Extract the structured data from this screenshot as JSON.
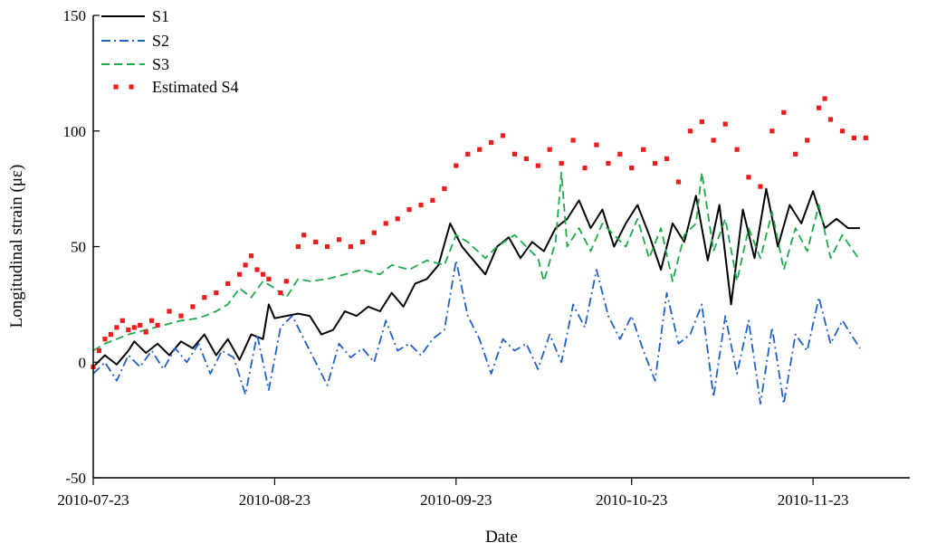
{
  "chart_data": {
    "type": "line",
    "xlabel": "Date",
    "ylabel": "Longitudinal strain (με)",
    "xlim": [
      "2010-07-23",
      "2010-12-11"
    ],
    "ylim": [
      -50,
      150
    ],
    "x_ticks": [
      "2010-07-23",
      "2010-08-23",
      "2010-09-23",
      "2010-10-23",
      "2010-11-23"
    ],
    "y_ticks": [
      -50,
      0,
      50,
      100,
      150
    ],
    "legend_position": "top-left",
    "grid": false,
    "series": [
      {
        "name": "S1",
        "style": "solid",
        "color": "#000000",
        "points": [
          [
            "2010-07-23",
            -2
          ],
          [
            "2010-07-25",
            3
          ],
          [
            "2010-07-27",
            -1
          ],
          [
            "2010-07-29",
            5
          ],
          [
            "2010-07-30",
            9
          ],
          [
            "2010-08-01",
            4
          ],
          [
            "2010-08-03",
            8
          ],
          [
            "2010-08-05",
            3
          ],
          [
            "2010-08-07",
            9
          ],
          [
            "2010-08-09",
            6
          ],
          [
            "2010-08-11",
            12
          ],
          [
            "2010-08-13",
            3
          ],
          [
            "2010-08-15",
            10
          ],
          [
            "2010-08-17",
            1
          ],
          [
            "2010-08-19",
            12
          ],
          [
            "2010-08-21",
            10
          ],
          [
            "2010-08-22",
            25
          ],
          [
            "2010-08-23",
            19
          ],
          [
            "2010-08-25",
            20
          ],
          [
            "2010-08-27",
            21
          ],
          [
            "2010-08-29",
            20
          ],
          [
            "2010-08-31",
            12
          ],
          [
            "2010-09-02",
            14
          ],
          [
            "2010-09-04",
            22
          ],
          [
            "2010-09-06",
            20
          ],
          [
            "2010-09-08",
            24
          ],
          [
            "2010-09-10",
            22
          ],
          [
            "2010-09-12",
            30
          ],
          [
            "2010-09-14",
            24
          ],
          [
            "2010-09-16",
            34
          ],
          [
            "2010-09-18",
            36
          ],
          [
            "2010-09-20",
            42
          ],
          [
            "2010-09-22",
            60
          ],
          [
            "2010-09-24",
            50
          ],
          [
            "2010-09-26",
            44
          ],
          [
            "2010-09-28",
            38
          ],
          [
            "2010-09-30",
            50
          ],
          [
            "2010-10-02",
            54
          ],
          [
            "2010-10-04",
            45
          ],
          [
            "2010-10-06",
            52
          ],
          [
            "2010-10-08",
            48
          ],
          [
            "2010-10-10",
            58
          ],
          [
            "2010-10-12",
            62
          ],
          [
            "2010-10-14",
            70
          ],
          [
            "2010-10-16",
            58
          ],
          [
            "2010-10-18",
            66
          ],
          [
            "2010-10-20",
            50
          ],
          [
            "2010-10-22",
            60
          ],
          [
            "2010-10-24",
            68
          ],
          [
            "2010-10-26",
            55
          ],
          [
            "2010-10-28",
            40
          ],
          [
            "2010-10-30",
            60
          ],
          [
            "2010-11-01",
            52
          ],
          [
            "2010-11-03",
            72
          ],
          [
            "2010-11-05",
            44
          ],
          [
            "2010-11-07",
            68
          ],
          [
            "2010-11-09",
            25
          ],
          [
            "2010-11-11",
            66
          ],
          [
            "2010-11-13",
            45
          ],
          [
            "2010-11-15",
            75
          ],
          [
            "2010-11-17",
            50
          ],
          [
            "2010-11-19",
            68
          ],
          [
            "2010-11-21",
            60
          ],
          [
            "2010-11-23",
            74
          ],
          [
            "2010-11-25",
            58
          ],
          [
            "2010-11-27",
            62
          ],
          [
            "2010-11-29",
            58
          ],
          [
            "2010-12-01",
            58
          ]
        ]
      },
      {
        "name": "S2",
        "style": "dashdot",
        "color": "#1f5fc8",
        "points": [
          [
            "2010-07-23",
            -5
          ],
          [
            "2010-07-25",
            0
          ],
          [
            "2010-07-27",
            -8
          ],
          [
            "2010-07-29",
            3
          ],
          [
            "2010-07-31",
            -2
          ],
          [
            "2010-08-02",
            5
          ],
          [
            "2010-08-04",
            -3
          ],
          [
            "2010-08-06",
            6
          ],
          [
            "2010-08-08",
            0
          ],
          [
            "2010-08-10",
            8
          ],
          [
            "2010-08-12",
            -5
          ],
          [
            "2010-08-14",
            5
          ],
          [
            "2010-08-16",
            2
          ],
          [
            "2010-08-18",
            -14
          ],
          [
            "2010-08-20",
            12
          ],
          [
            "2010-08-22",
            -12
          ],
          [
            "2010-08-24",
            15
          ],
          [
            "2010-08-26",
            20
          ],
          [
            "2010-08-28",
            10
          ],
          [
            "2010-08-30",
            0
          ],
          [
            "2010-09-01",
            -10
          ],
          [
            "2010-09-03",
            8
          ],
          [
            "2010-09-05",
            2
          ],
          [
            "2010-09-07",
            6
          ],
          [
            "2010-09-09",
            0
          ],
          [
            "2010-09-11",
            18
          ],
          [
            "2010-09-13",
            5
          ],
          [
            "2010-09-15",
            8
          ],
          [
            "2010-09-17",
            3
          ],
          [
            "2010-09-19",
            10
          ],
          [
            "2010-09-21",
            14
          ],
          [
            "2010-09-23",
            44
          ],
          [
            "2010-09-25",
            20
          ],
          [
            "2010-09-27",
            10
          ],
          [
            "2010-09-29",
            -5
          ],
          [
            "2010-10-01",
            10
          ],
          [
            "2010-10-03",
            5
          ],
          [
            "2010-10-05",
            8
          ],
          [
            "2010-10-07",
            -3
          ],
          [
            "2010-10-09",
            12
          ],
          [
            "2010-10-11",
            0
          ],
          [
            "2010-10-13",
            25
          ],
          [
            "2010-10-15",
            15
          ],
          [
            "2010-10-17",
            40
          ],
          [
            "2010-10-19",
            20
          ],
          [
            "2010-10-21",
            10
          ],
          [
            "2010-10-23",
            20
          ],
          [
            "2010-10-25",
            5
          ],
          [
            "2010-10-27",
            -8
          ],
          [
            "2010-10-29",
            30
          ],
          [
            "2010-10-31",
            8
          ],
          [
            "2010-11-02",
            12
          ],
          [
            "2010-11-04",
            25
          ],
          [
            "2010-11-06",
            -15
          ],
          [
            "2010-11-08",
            20
          ],
          [
            "2010-11-10",
            -5
          ],
          [
            "2010-11-12",
            18
          ],
          [
            "2010-11-14",
            -18
          ],
          [
            "2010-11-16",
            15
          ],
          [
            "2010-11-18",
            -18
          ],
          [
            "2010-11-20",
            12
          ],
          [
            "2010-11-22",
            5
          ],
          [
            "2010-11-24",
            28
          ],
          [
            "2010-11-26",
            8
          ],
          [
            "2010-11-28",
            18
          ],
          [
            "2010-11-30",
            10
          ],
          [
            "2010-12-01",
            6
          ]
        ]
      },
      {
        "name": "S3",
        "style": "dashed",
        "color": "#1aaa4a",
        "points": [
          [
            "2010-07-23",
            5
          ],
          [
            "2010-07-25",
            8
          ],
          [
            "2010-07-27",
            10
          ],
          [
            "2010-07-29",
            12
          ],
          [
            "2010-08-01",
            14
          ],
          [
            "2010-08-04",
            16
          ],
          [
            "2010-08-07",
            18
          ],
          [
            "2010-08-10",
            19
          ],
          [
            "2010-08-13",
            22
          ],
          [
            "2010-08-15",
            25
          ],
          [
            "2010-08-17",
            32
          ],
          [
            "2010-08-19",
            28
          ],
          [
            "2010-08-21",
            35
          ],
          [
            "2010-08-23",
            32
          ],
          [
            "2010-08-25",
            28
          ],
          [
            "2010-08-27",
            36
          ],
          [
            "2010-08-29",
            35
          ],
          [
            "2010-09-01",
            36
          ],
          [
            "2010-09-04",
            38
          ],
          [
            "2010-09-07",
            40
          ],
          [
            "2010-09-10",
            38
          ],
          [
            "2010-09-12",
            42
          ],
          [
            "2010-09-15",
            40
          ],
          [
            "2010-09-18",
            44
          ],
          [
            "2010-09-21",
            42
          ],
          [
            "2010-09-23",
            55
          ],
          [
            "2010-09-25",
            52
          ],
          [
            "2010-09-28",
            45
          ],
          [
            "2010-09-30",
            50
          ],
          [
            "2010-10-03",
            55
          ],
          [
            "2010-10-05",
            50
          ],
          [
            "2010-10-07",
            45
          ],
          [
            "2010-10-08",
            35
          ],
          [
            "2010-10-10",
            52
          ],
          [
            "2010-10-11",
            82
          ],
          [
            "2010-10-12",
            50
          ],
          [
            "2010-10-14",
            58
          ],
          [
            "2010-10-16",
            48
          ],
          [
            "2010-10-18",
            60
          ],
          [
            "2010-10-20",
            55
          ],
          [
            "2010-10-22",
            50
          ],
          [
            "2010-10-24",
            62
          ],
          [
            "2010-10-26",
            45
          ],
          [
            "2010-10-28",
            58
          ],
          [
            "2010-10-30",
            35
          ],
          [
            "2010-11-01",
            55
          ],
          [
            "2010-11-03",
            60
          ],
          [
            "2010-11-04",
            82
          ],
          [
            "2010-11-06",
            48
          ],
          [
            "2010-11-08",
            62
          ],
          [
            "2010-11-10",
            35
          ],
          [
            "2010-11-12",
            58
          ],
          [
            "2010-11-14",
            45
          ],
          [
            "2010-11-16",
            65
          ],
          [
            "2010-11-18",
            40
          ],
          [
            "2010-11-20",
            58
          ],
          [
            "2010-11-22",
            48
          ],
          [
            "2010-11-24",
            68
          ],
          [
            "2010-11-26",
            45
          ],
          [
            "2010-11-28",
            55
          ],
          [
            "2010-12-01",
            44
          ]
        ]
      },
      {
        "name": "Estimated S4",
        "style": "markers",
        "color": "#ee1c1c",
        "points": [
          [
            "2010-07-23",
            -2
          ],
          [
            "2010-07-24",
            5
          ],
          [
            "2010-07-25",
            10
          ],
          [
            "2010-07-26",
            12
          ],
          [
            "2010-07-27",
            15
          ],
          [
            "2010-07-28",
            18
          ],
          [
            "2010-07-29",
            14
          ],
          [
            "2010-07-30",
            15
          ],
          [
            "2010-07-31",
            16
          ],
          [
            "2010-08-01",
            13
          ],
          [
            "2010-08-02",
            18
          ],
          [
            "2010-08-03",
            16
          ],
          [
            "2010-08-05",
            22
          ],
          [
            "2010-08-07",
            20
          ],
          [
            "2010-08-09",
            24
          ],
          [
            "2010-08-11",
            28
          ],
          [
            "2010-08-13",
            30
          ],
          [
            "2010-08-15",
            34
          ],
          [
            "2010-08-17",
            38
          ],
          [
            "2010-08-18",
            42
          ],
          [
            "2010-08-19",
            46
          ],
          [
            "2010-08-20",
            40
          ],
          [
            "2010-08-21",
            38
          ],
          [
            "2010-08-22",
            36
          ],
          [
            "2010-08-24",
            30
          ],
          [
            "2010-08-25",
            35
          ],
          [
            "2010-08-27",
            50
          ],
          [
            "2010-08-28",
            55
          ],
          [
            "2010-08-30",
            52
          ],
          [
            "2010-09-01",
            50
          ],
          [
            "2010-09-03",
            53
          ],
          [
            "2010-09-05",
            50
          ],
          [
            "2010-09-07",
            52
          ],
          [
            "2010-09-09",
            56
          ],
          [
            "2010-09-11",
            60
          ],
          [
            "2010-09-13",
            62
          ],
          [
            "2010-09-15",
            66
          ],
          [
            "2010-09-17",
            68
          ],
          [
            "2010-09-19",
            70
          ],
          [
            "2010-09-21",
            75
          ],
          [
            "2010-09-23",
            85
          ],
          [
            "2010-09-25",
            90
          ],
          [
            "2010-09-27",
            92
          ],
          [
            "2010-09-29",
            95
          ],
          [
            "2010-10-01",
            98
          ],
          [
            "2010-10-03",
            90
          ],
          [
            "2010-10-05",
            88
          ],
          [
            "2010-10-07",
            85
          ],
          [
            "2010-10-09",
            92
          ],
          [
            "2010-10-11",
            86
          ],
          [
            "2010-10-13",
            96
          ],
          [
            "2010-10-15",
            84
          ],
          [
            "2010-10-17",
            94
          ],
          [
            "2010-10-19",
            86
          ],
          [
            "2010-10-21",
            90
          ],
          [
            "2010-10-23",
            84
          ],
          [
            "2010-10-25",
            92
          ],
          [
            "2010-10-27",
            86
          ],
          [
            "2010-10-29",
            88
          ],
          [
            "2010-10-31",
            78
          ],
          [
            "2010-11-02",
            100
          ],
          [
            "2010-11-04",
            104
          ],
          [
            "2010-11-06",
            96
          ],
          [
            "2010-11-08",
            103
          ],
          [
            "2010-11-10",
            92
          ],
          [
            "2010-11-12",
            80
          ],
          [
            "2010-11-14",
            76
          ],
          [
            "2010-11-16",
            100
          ],
          [
            "2010-11-18",
            108
          ],
          [
            "2010-11-20",
            90
          ],
          [
            "2010-11-22",
            96
          ],
          [
            "2010-11-24",
            110
          ],
          [
            "2010-11-25",
            114
          ],
          [
            "2010-11-26",
            105
          ],
          [
            "2010-11-28",
            100
          ],
          [
            "2010-11-30",
            97
          ],
          [
            "2010-12-02",
            97
          ]
        ]
      }
    ]
  }
}
